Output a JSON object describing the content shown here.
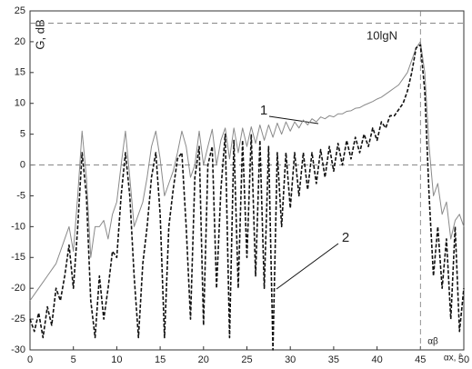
{
  "chart_data": {
    "type": "line",
    "y_label": "G, dB",
    "x_label": "αx, °",
    "annotations": {
      "level": "10lgN",
      "curve1": "1",
      "curve2": "2",
      "marker": "αβ"
    },
    "hlines": [
      23,
      0
    ],
    "vlines": [
      45
    ],
    "xlim": [
      0,
      50
    ],
    "ylim": [
      -30,
      25
    ],
    "xticks": [
      0,
      5,
      10,
      15,
      20,
      25,
      30,
      35,
      40,
      45,
      50
    ],
    "yticks": [
      -30,
      -25,
      -20,
      -15,
      -10,
      -5,
      0,
      5,
      10,
      15,
      20,
      25
    ],
    "x": [
      0,
      0.5,
      1,
      1.5,
      2,
      2.5,
      3,
      3.5,
      4,
      4.5,
      5,
      5.5,
      6,
      6.5,
      7,
      7.5,
      8,
      8.5,
      9,
      9.5,
      10,
      10.5,
      11,
      11.5,
      12,
      12.5,
      13,
      13.5,
      14,
      14.5,
      15,
      15.5,
      16,
      16.5,
      17,
      17.5,
      18,
      18.5,
      19,
      19.5,
      20,
      20.5,
      21,
      21.5,
      22,
      22.5,
      23,
      23.5,
      24,
      24.5,
      25,
      25.5,
      26,
      26.5,
      27,
      27.5,
      28,
      28.5,
      29,
      29.5,
      30,
      30.5,
      31,
      31.5,
      32,
      32.5,
      33,
      33.5,
      34,
      34.5,
      35,
      35.5,
      36,
      36.5,
      37,
      37.5,
      38,
      38.5,
      39,
      39.5,
      40,
      40.5,
      41,
      41.5,
      42,
      42.5,
      43,
      43.5,
      44,
      44.5,
      45,
      45.5,
      46,
      46.5,
      47,
      47.5,
      48,
      48.5,
      49,
      49.5,
      50
    ],
    "series": [
      {
        "color": "#8a8a8a",
        "dash": false,
        "values": [
          -22,
          -21,
          -20,
          -19,
          -18,
          -17,
          -16,
          -14,
          -12,
          -10,
          -14,
          -5,
          5.5,
          -2,
          -15,
          -10,
          -10,
          -9,
          -12,
          -8,
          -6,
          0,
          5.5,
          -2,
          -10,
          -8,
          -6,
          -2,
          3,
          5.5,
          1,
          -5,
          -3,
          -1,
          2,
          5.5,
          3,
          -2,
          0,
          5.5,
          0,
          3,
          5.8,
          0,
          4,
          6,
          1,
          6,
          2,
          6,
          3,
          6.2,
          3.5,
          6.5,
          4,
          6.5,
          4.5,
          6.8,
          5,
          7,
          5.5,
          7,
          6,
          7.3,
          6.5,
          7.5,
          7,
          7.8,
          7.5,
          8,
          7.8,
          8.3,
          8.3,
          8.7,
          8.8,
          9.2,
          9.3,
          9.7,
          10,
          10.3,
          10.7,
          11,
          11.5,
          12,
          12.5,
          13,
          14,
          15,
          17,
          19,
          20,
          15,
          3,
          -5,
          -3,
          -8,
          -6,
          -12,
          -9,
          -8,
          -10
        ]
      },
      {
        "color": "#111111",
        "dash": true,
        "values": [
          -25,
          -27,
          -24,
          -28,
          -23,
          -26,
          -20,
          -22,
          -18,
          -13,
          -20,
          -10,
          2,
          -5,
          -22,
          -28,
          -18,
          -25,
          -20,
          -14,
          -15,
          -5,
          2,
          -5,
          -18,
          -28,
          -16,
          -10,
          -2,
          2,
          -8,
          -28,
          -10,
          -4,
          1,
          2,
          -10,
          -25,
          -2,
          3,
          -26,
          0,
          3,
          -20,
          -4,
          5,
          -28,
          4,
          -20,
          4,
          -15,
          5,
          -18,
          4,
          -20,
          3,
          -30,
          2,
          -10,
          2,
          -7,
          2,
          -5,
          2,
          -4,
          2,
          -3,
          2.5,
          -2,
          3,
          -1,
          3.5,
          0,
          4,
          1,
          4.5,
          2,
          5,
          3,
          6,
          4,
          7,
          6,
          8,
          8,
          9,
          10,
          12,
          15,
          19,
          19.5,
          12,
          -5,
          -18,
          -10,
          -20,
          -12,
          -25,
          -10,
          -27,
          -20
        ]
      }
    ]
  }
}
